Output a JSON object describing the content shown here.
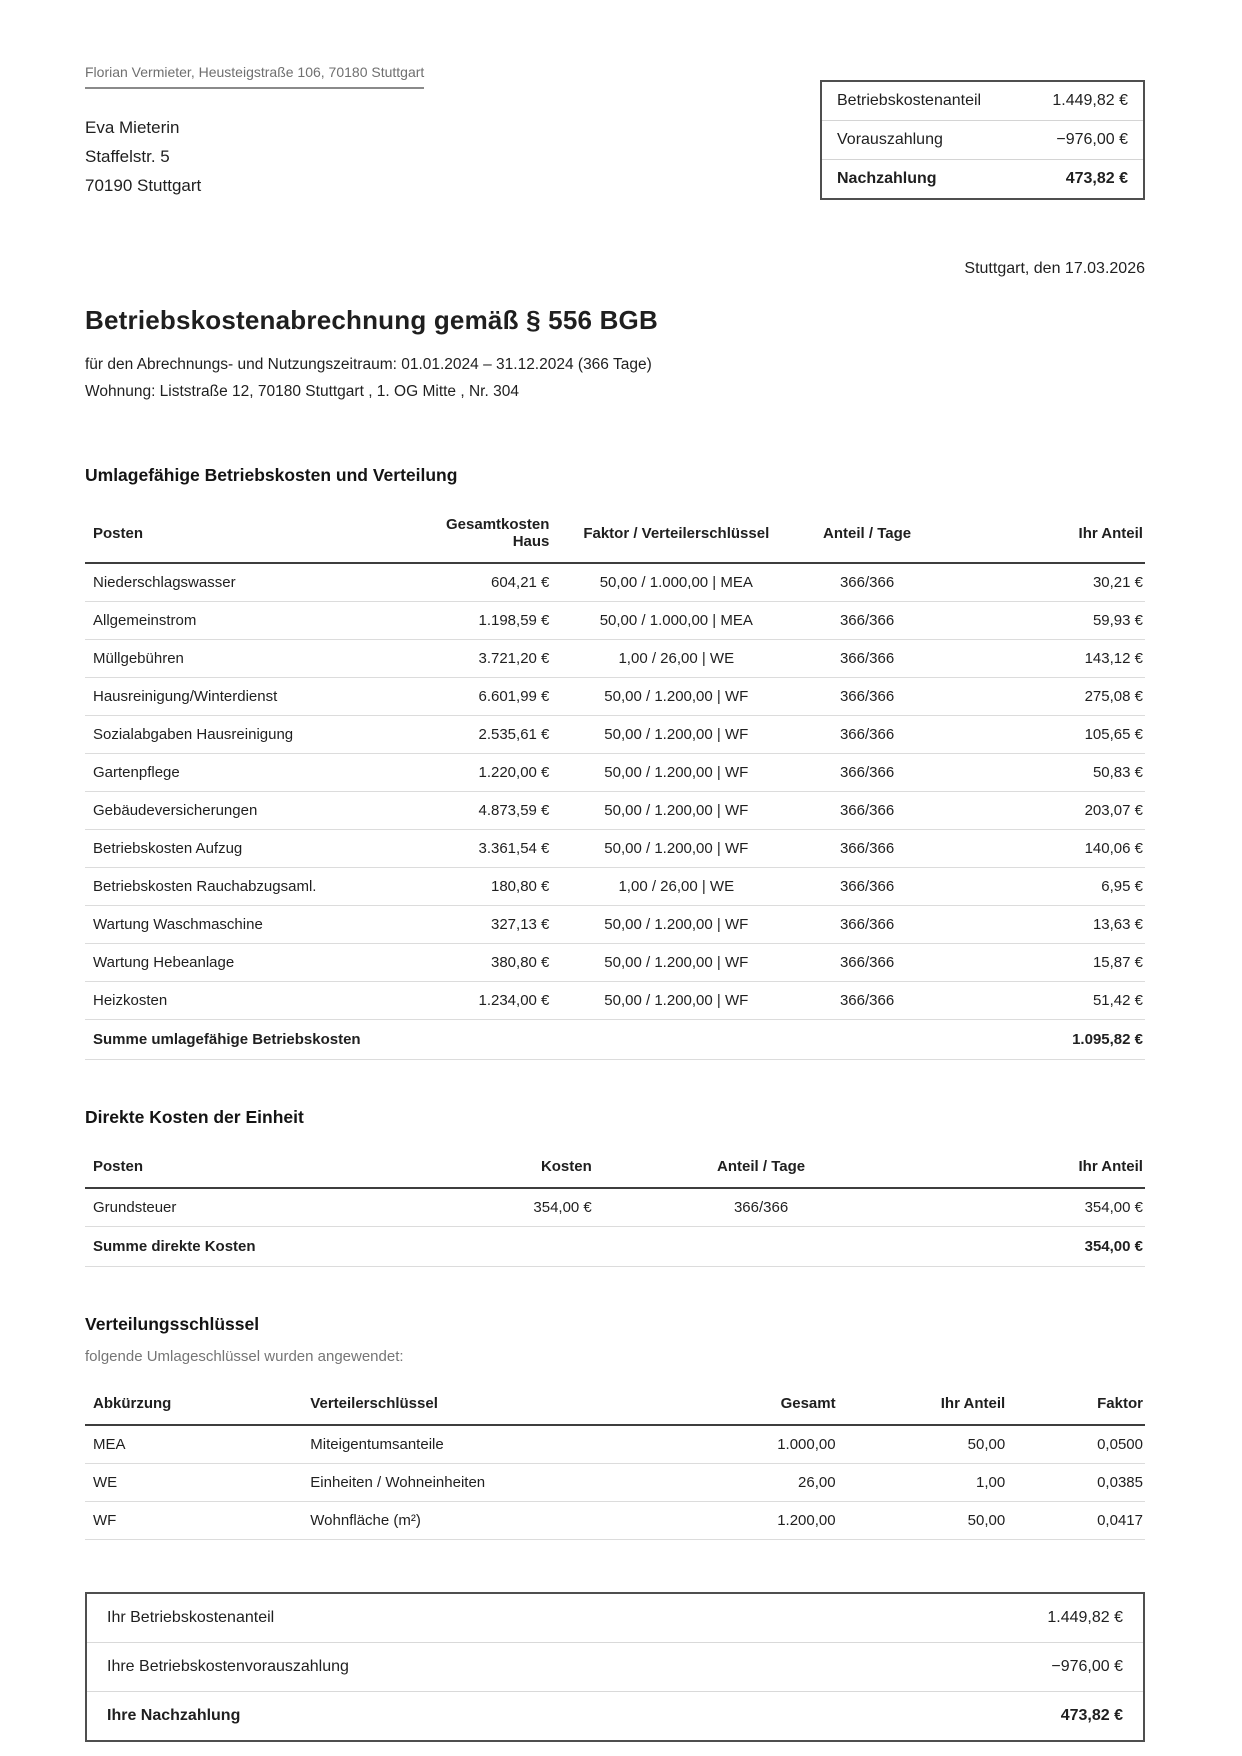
{
  "page": {
    "sender_line": "Florian Vermieter, Heusteigstraße 106, 70180 Stuttgart",
    "recipient": {
      "name": "Eva Mieterin",
      "street": "Staffelstr. 5",
      "city": "70190 Stuttgart"
    },
    "date_line": "Stuttgart, den 17.03.2026",
    "title": "Betriebskostenabrechnung gemäß § 556 BGB",
    "subtitle_period": "für den Abrechnungs- und Nutzungszeitraum: 01.01.2024 – 31.12.2024 (366 Tage)",
    "subtitle_unit": "Wohnung: Liststraße 12, 70180 Stuttgart , 1. OG Mitte , Nr. 304"
  },
  "summary_box": {
    "rows": [
      {
        "label": "Betriebskostenanteil",
        "value": "1.449,82 €"
      },
      {
        "label": "Vorauszahlung",
        "value": "−976,00 €"
      },
      {
        "label": "Nachzahlung",
        "value": "473,82 €"
      }
    ]
  },
  "allocable_costs": {
    "heading": "Umlagefähige Betriebskosten und Verteilung",
    "columns": [
      "Posten",
      "Gesamtkosten Haus",
      "Faktor / Verteilerschlüssel",
      "Anteil / Tage",
      "Ihr Anteil"
    ],
    "rows": [
      {
        "posten": "Niederschlagswasser",
        "gesamtkosten": "604,21 €",
        "faktor": "50,00 / 1.000,00 | MEA",
        "anteil_tage": "366/366",
        "ihr_anteil": "30,21 €"
      },
      {
        "posten": "Allgemeinstrom",
        "gesamtkosten": "1.198,59 €",
        "faktor": "50,00 / 1.000,00 | MEA",
        "anteil_tage": "366/366",
        "ihr_anteil": "59,93 €"
      },
      {
        "posten": "Müllgebühren",
        "gesamtkosten": "3.721,20 €",
        "faktor": "1,00 / 26,00 | WE",
        "anteil_tage": "366/366",
        "ihr_anteil": "143,12 €"
      },
      {
        "posten": "Hausreinigung/Winterdienst",
        "gesamtkosten": "6.601,99 €",
        "faktor": "50,00 / 1.200,00 | WF",
        "anteil_tage": "366/366",
        "ihr_anteil": "275,08 €"
      },
      {
        "posten": "Sozialabgaben Hausreinigung",
        "gesamtkosten": "2.535,61 €",
        "faktor": "50,00 / 1.200,00 | WF",
        "anteil_tage": "366/366",
        "ihr_anteil": "105,65 €"
      },
      {
        "posten": "Gartenpflege",
        "gesamtkosten": "1.220,00 €",
        "faktor": "50,00 / 1.200,00 | WF",
        "anteil_tage": "366/366",
        "ihr_anteil": "50,83 €"
      },
      {
        "posten": "Gebäudeversicherungen",
        "gesamtkosten": "4.873,59 €",
        "faktor": "50,00 / 1.200,00 | WF",
        "anteil_tage": "366/366",
        "ihr_anteil": "203,07 €"
      },
      {
        "posten": "Betriebskosten Aufzug",
        "gesamtkosten": "3.361,54 €",
        "faktor": "50,00 / 1.200,00 | WF",
        "anteil_tage": "366/366",
        "ihr_anteil": "140,06 €"
      },
      {
        "posten": "Betriebskosten Rauchabzugsaml.",
        "gesamtkosten": "180,80 €",
        "faktor": "1,00 / 26,00 | WE",
        "anteil_tage": "366/366",
        "ihr_anteil": "6,95 €"
      },
      {
        "posten": "Wartung Waschmaschine",
        "gesamtkosten": "327,13 €",
        "faktor": "50,00 / 1.200,00 | WF",
        "anteil_tage": "366/366",
        "ihr_anteil": "13,63 €"
      },
      {
        "posten": "Wartung Hebeanlage",
        "gesamtkosten": "380,80 €",
        "faktor": "50,00 / 1.200,00 | WF",
        "anteil_tage": "366/366",
        "ihr_anteil": "15,87 €"
      },
      {
        "posten": "Heizkosten",
        "gesamtkosten": "1.234,00 €",
        "faktor": "50,00 / 1.200,00 | WF",
        "anteil_tage": "366/366",
        "ihr_anteil": "51,42 €"
      }
    ],
    "total_label": "Summe umlagefähige Betriebskosten",
    "total_value": "1.095,82 €"
  },
  "direct_costs": {
    "heading": "Direkte Kosten der Einheit",
    "columns": [
      "Posten",
      "Kosten",
      "Anteil / Tage",
      "Ihr Anteil"
    ],
    "rows": [
      {
        "posten": "Grundsteuer",
        "kosten": "354,00 €",
        "anteil_tage": "366/366",
        "ihr_anteil": "354,00 €"
      }
    ],
    "total_label": "Summe direkte Kosten",
    "total_value": "354,00 €"
  },
  "allocation_keys": {
    "heading": "Verteilungsschlüssel",
    "note": "folgende Umlageschlüssel wurden angewendet:",
    "columns": [
      "Abkürzung",
      "Verteilerschlüssel",
      "Gesamt",
      "Ihr Anteil",
      "Faktor"
    ],
    "rows": [
      {
        "abk": "MEA",
        "schluessel": "Miteigentumsanteile",
        "gesamt": "1.000,00",
        "ihr_anteil": "50,00",
        "faktor": "0,0500"
      },
      {
        "abk": "WE",
        "schluessel": "Einheiten / Wohneinheiten",
        "gesamt": "26,00",
        "ihr_anteil": "1,00",
        "faktor": "0,0385"
      },
      {
        "abk": "WF",
        "schluessel": "Wohnfläche (m²)",
        "gesamt": "1.200,00",
        "ihr_anteil": "50,00",
        "faktor": "0,0417"
      }
    ]
  },
  "result_box": {
    "rows": [
      {
        "label": "Ihr Betriebskostenanteil",
        "value": "1.449,82 €"
      },
      {
        "label": "Ihre Betriebskostenvorauszahlung",
        "value": "−976,00 €"
      },
      {
        "label": "Ihre Nachzahlung",
        "value": "473,82 €"
      }
    ]
  }
}
